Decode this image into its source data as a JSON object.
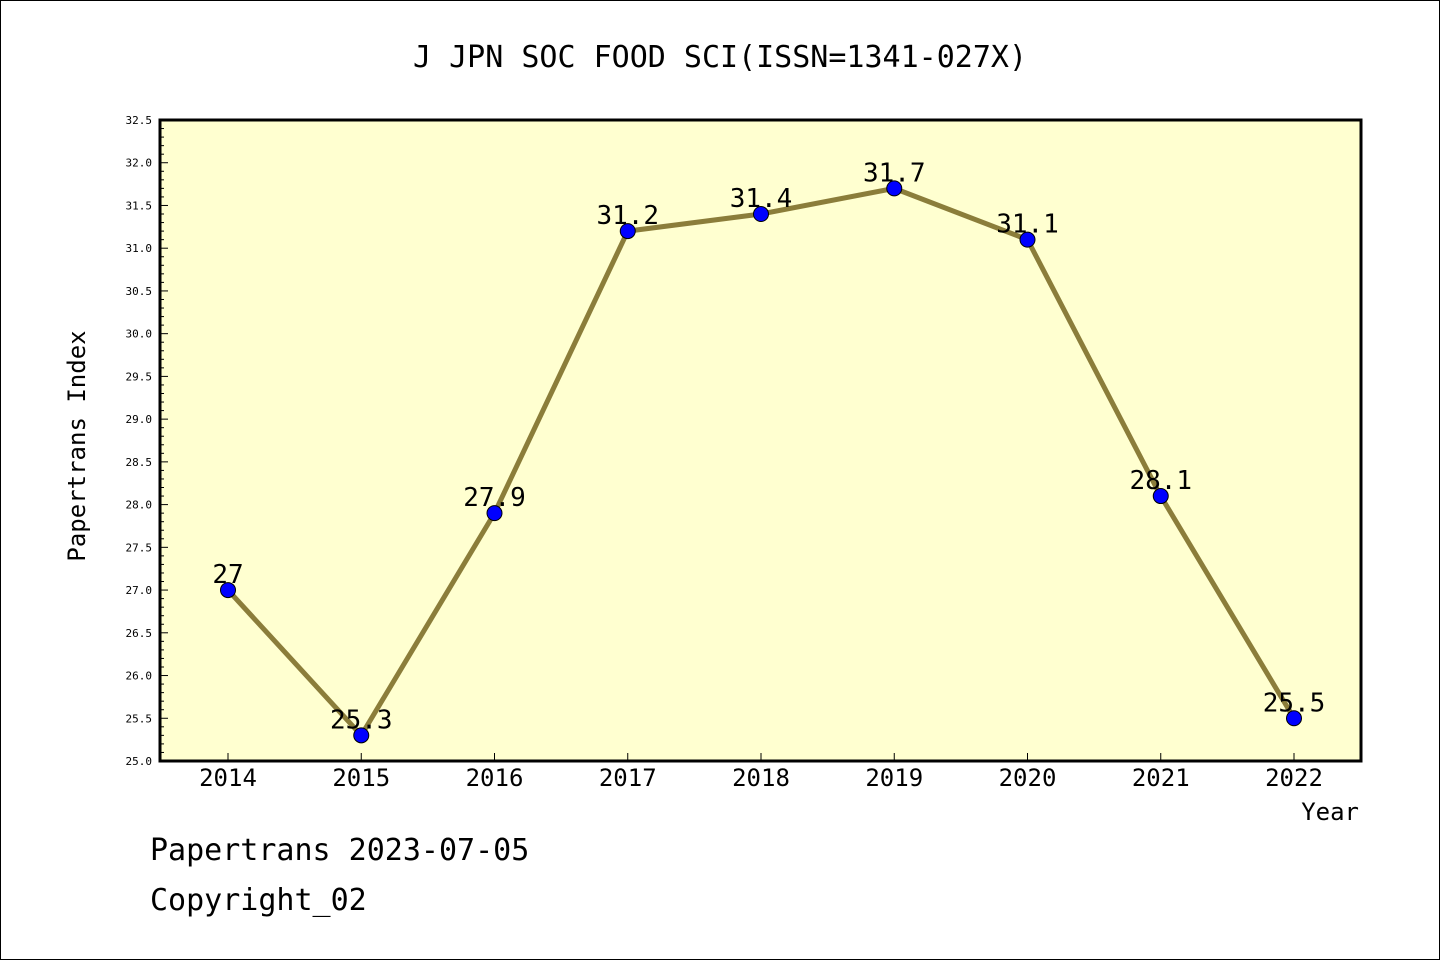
{
  "chart_data": {
    "type": "line",
    "title": "J JPN SOC FOOD SCI(ISSN=1341-027X)",
    "xlabel": "Year",
    "ylabel": "Papertrans Index",
    "x": [
      "2014",
      "2015",
      "2016",
      "2017",
      "2018",
      "2019",
      "2020",
      "2021",
      "2022"
    ],
    "series": [
      {
        "values": [
          27,
          25.3,
          27.9,
          31.2,
          31.4,
          31.7,
          31.1,
          28.1,
          25.5
        ],
        "labels": [
          "27",
          "25.3",
          "27.9",
          "31.2",
          "31.4",
          "31.7",
          "31.1",
          "28.1",
          "25.5"
        ],
        "line_color": "#8b7d3a",
        "marker_color": "#0000ff"
      }
    ],
    "ylim": [
      25.0,
      32.5
    ],
    "yticks": [
      "25.0",
      "25.5",
      "26.0",
      "26.5",
      "27.0",
      "27.5",
      "28.0",
      "28.5",
      "29.0",
      "29.5",
      "30.0",
      "30.5",
      "31.0",
      "31.5",
      "32.0",
      "32.5"
    ],
    "grid": false,
    "plot_background": "#ffffd0"
  },
  "footer": {
    "line1": "Papertrans 2023-07-05",
    "line2": "Copyright_02"
  }
}
